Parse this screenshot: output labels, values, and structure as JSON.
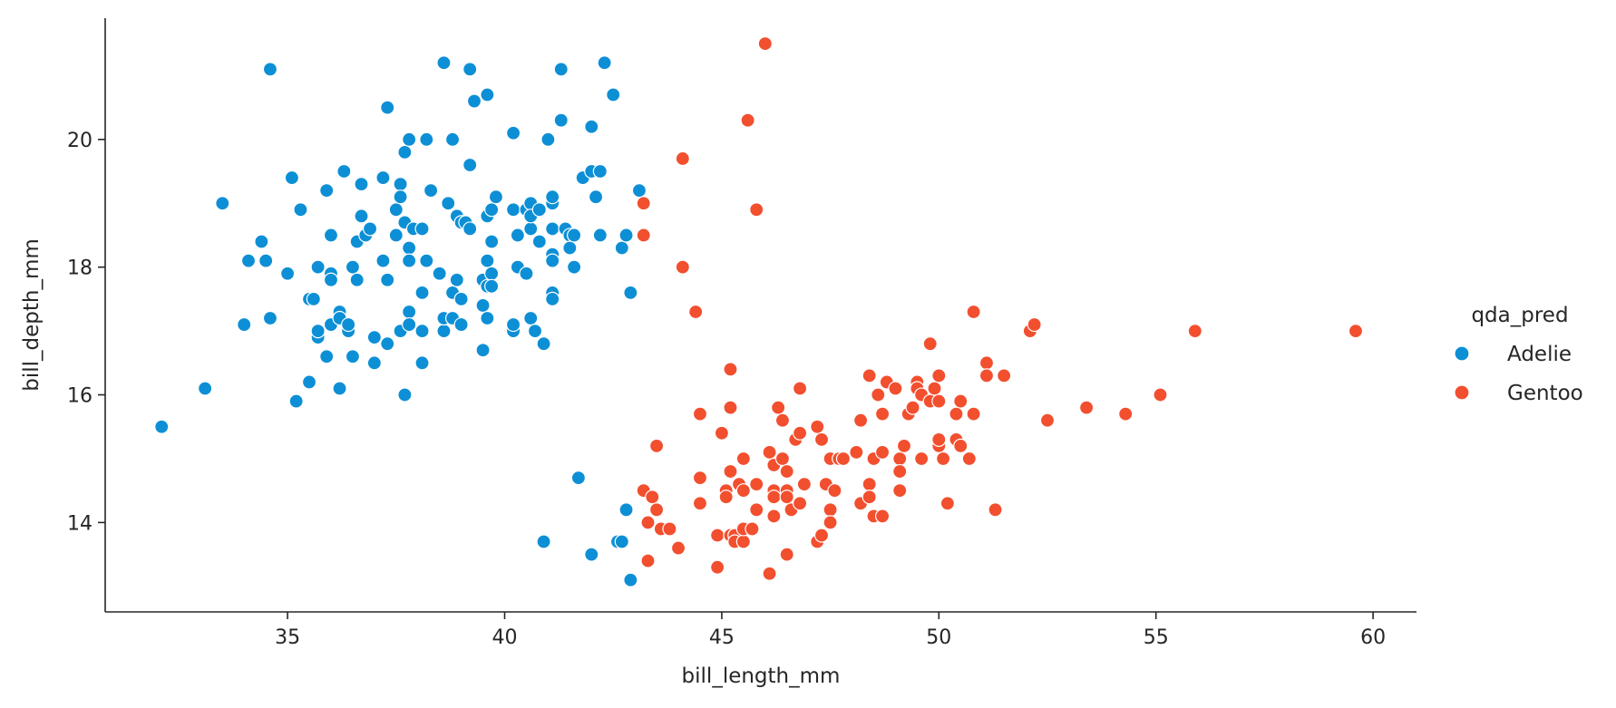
{
  "chart_data": {
    "type": "scatter",
    "title": "",
    "xlabel": "bill_length_mm",
    "ylabel": "bill_depth_mm",
    "xlim": [
      30.8,
      61.0
    ],
    "ylim": [
      12.6,
      21.9
    ],
    "xticks": [
      35,
      40,
      45,
      50,
      55,
      60
    ],
    "yticks": [
      14,
      16,
      18,
      20
    ],
    "grid": false,
    "legend": {
      "title": "qda_pred",
      "position": "right",
      "entries": [
        "Adelie",
        "Gentoo"
      ]
    },
    "colors": {
      "Adelie": "#0d8fd6",
      "Gentoo": "#f24f2f"
    },
    "series": [
      {
        "name": "Adelie",
        "points": [
          [
            32.1,
            15.5
          ],
          [
            33.1,
            16.1
          ],
          [
            33.5,
            19.0
          ],
          [
            34.0,
            17.1
          ],
          [
            34.1,
            18.1
          ],
          [
            34.4,
            18.4
          ],
          [
            34.5,
            18.1
          ],
          [
            34.6,
            21.1
          ],
          [
            34.6,
            17.2
          ],
          [
            35.0,
            17.9
          ],
          [
            35.1,
            19.4
          ],
          [
            35.2,
            15.9
          ],
          [
            35.3,
            18.9
          ],
          [
            35.5,
            16.2
          ],
          [
            35.5,
            17.5
          ],
          [
            35.6,
            17.5
          ],
          [
            35.7,
            16.9
          ],
          [
            35.7,
            17.0
          ],
          [
            35.7,
            18.0
          ],
          [
            35.9,
            19.2
          ],
          [
            35.9,
            16.6
          ],
          [
            36.0,
            18.5
          ],
          [
            36.0,
            17.9
          ],
          [
            36.0,
            17.8
          ],
          [
            36.0,
            17.1
          ],
          [
            36.2,
            16.1
          ],
          [
            36.2,
            17.3
          ],
          [
            36.2,
            17.2
          ],
          [
            36.3,
            19.5
          ],
          [
            36.4,
            17.0
          ],
          [
            36.4,
            17.1
          ],
          [
            36.5,
            16.6
          ],
          [
            36.5,
            18.0
          ],
          [
            36.6,
            17.8
          ],
          [
            36.6,
            18.4
          ],
          [
            36.7,
            18.8
          ],
          [
            36.7,
            19.3
          ],
          [
            36.8,
            18.5
          ],
          [
            36.9,
            18.6
          ],
          [
            37.0,
            16.9
          ],
          [
            37.0,
            16.5
          ],
          [
            37.2,
            18.1
          ],
          [
            37.2,
            19.4
          ],
          [
            37.3,
            20.5
          ],
          [
            37.3,
            17.8
          ],
          [
            37.3,
            16.8
          ],
          [
            37.5,
            18.9
          ],
          [
            37.5,
            18.5
          ],
          [
            37.6,
            19.3
          ],
          [
            37.6,
            19.1
          ],
          [
            37.6,
            17.0
          ],
          [
            37.7,
            19.8
          ],
          [
            37.7,
            18.7
          ],
          [
            37.7,
            16.0
          ],
          [
            37.8,
            20.0
          ],
          [
            37.8,
            18.3
          ],
          [
            37.8,
            17.3
          ],
          [
            37.8,
            18.1
          ],
          [
            37.8,
            17.1
          ],
          [
            37.9,
            18.6
          ],
          [
            38.1,
            18.6
          ],
          [
            38.1,
            17.6
          ],
          [
            38.1,
            17.0
          ],
          [
            38.1,
            16.5
          ],
          [
            38.2,
            18.1
          ],
          [
            38.2,
            20.0
          ],
          [
            38.3,
            19.2
          ],
          [
            38.6,
            21.2
          ],
          [
            38.6,
            17.0
          ],
          [
            38.6,
            17.2
          ],
          [
            38.5,
            17.9
          ],
          [
            38.7,
            19.0
          ],
          [
            38.8,
            17.2
          ],
          [
            38.8,
            20.0
          ],
          [
            38.8,
            17.6
          ],
          [
            38.9,
            18.8
          ],
          [
            38.9,
            17.8
          ],
          [
            39.0,
            18.7
          ],
          [
            39.0,
            17.5
          ],
          [
            39.0,
            17.1
          ],
          [
            39.1,
            18.7
          ],
          [
            39.2,
            21.1
          ],
          [
            39.2,
            19.6
          ],
          [
            39.2,
            18.6
          ],
          [
            39.3,
            20.6
          ],
          [
            39.5,
            17.8
          ],
          [
            39.5,
            16.7
          ],
          [
            39.5,
            17.4
          ],
          [
            39.6,
            18.8
          ],
          [
            39.6,
            17.7
          ],
          [
            39.6,
            18.1
          ],
          [
            39.6,
            17.2
          ],
          [
            39.6,
            20.7
          ],
          [
            39.7,
            18.4
          ],
          [
            39.7,
            17.9
          ],
          [
            39.7,
            18.9
          ],
          [
            39.7,
            17.7
          ],
          [
            39.8,
            19.1
          ],
          [
            40.2,
            20.1
          ],
          [
            40.2,
            18.9
          ],
          [
            40.2,
            17.0
          ],
          [
            40.2,
            17.1
          ],
          [
            40.3,
            18.0
          ],
          [
            40.3,
            18.5
          ],
          [
            40.5,
            18.9
          ],
          [
            40.5,
            17.9
          ],
          [
            40.6,
            19.0
          ],
          [
            40.6,
            18.6
          ],
          [
            40.6,
            18.8
          ],
          [
            40.6,
            17.2
          ],
          [
            40.7,
            17.0
          ],
          [
            40.8,
            18.4
          ],
          [
            40.8,
            18.9
          ],
          [
            40.9,
            16.8
          ],
          [
            41.0,
            20.0
          ],
          [
            41.1,
            19.0
          ],
          [
            41.1,
            18.6
          ],
          [
            41.1,
            17.6
          ],
          [
            41.1,
            18.2
          ],
          [
            41.1,
            19.1
          ],
          [
            41.1,
            18.1
          ],
          [
            41.1,
            17.5
          ],
          [
            41.3,
            21.1
          ],
          [
            41.3,
            20.3
          ],
          [
            41.4,
            18.6
          ],
          [
            41.5,
            18.5
          ],
          [
            41.5,
            18.3
          ],
          [
            41.6,
            18.0
          ],
          [
            41.6,
            18.5
          ],
          [
            41.8,
            19.4
          ],
          [
            42.0,
            20.2
          ],
          [
            42.0,
            19.5
          ],
          [
            42.1,
            19.1
          ],
          [
            42.2,
            18.5
          ],
          [
            42.2,
            19.5
          ],
          [
            42.3,
            21.2
          ],
          [
            42.5,
            20.7
          ],
          [
            42.7,
            18.3
          ],
          [
            42.8,
            18.5
          ],
          [
            42.9,
            17.6
          ],
          [
            43.1,
            19.2
          ],
          [
            41.7,
            14.7
          ],
          [
            40.9,
            13.7
          ],
          [
            42.0,
            13.5
          ],
          [
            42.6,
            13.7
          ],
          [
            42.7,
            13.7
          ],
          [
            42.8,
            14.2
          ],
          [
            42.9,
            13.1
          ]
        ]
      },
      {
        "name": "Gentoo",
        "points": [
          [
            43.2,
            19.0
          ],
          [
            43.2,
            18.5
          ],
          [
            43.2,
            14.5
          ],
          [
            43.3,
            14.0
          ],
          [
            43.3,
            13.4
          ],
          [
            43.4,
            14.4
          ],
          [
            43.5,
            14.2
          ],
          [
            43.5,
            15.2
          ],
          [
            43.6,
            13.9
          ],
          [
            43.8,
            13.9
          ],
          [
            44.0,
            13.6
          ],
          [
            44.1,
            19.7
          ],
          [
            44.1,
            18.0
          ],
          [
            44.4,
            17.3
          ],
          [
            44.5,
            15.7
          ],
          [
            44.5,
            14.7
          ],
          [
            44.5,
            14.3
          ],
          [
            44.9,
            13.3
          ],
          [
            44.9,
            13.8
          ],
          [
            45.0,
            15.4
          ],
          [
            45.1,
            14.5
          ],
          [
            45.1,
            14.4
          ],
          [
            45.2,
            16.4
          ],
          [
            45.2,
            15.8
          ],
          [
            45.2,
            14.8
          ],
          [
            45.2,
            13.8
          ],
          [
            45.3,
            13.8
          ],
          [
            45.3,
            13.7
          ],
          [
            45.4,
            14.6
          ],
          [
            45.5,
            15.0
          ],
          [
            45.5,
            14.5
          ],
          [
            45.5,
            13.7
          ],
          [
            45.5,
            13.9
          ],
          [
            45.6,
            20.3
          ],
          [
            45.7,
            13.9
          ],
          [
            45.8,
            18.9
          ],
          [
            45.8,
            14.6
          ],
          [
            45.8,
            14.2
          ],
          [
            46.0,
            21.5
          ],
          [
            46.1,
            15.1
          ],
          [
            46.1,
            13.2
          ],
          [
            46.2,
            14.5
          ],
          [
            46.2,
            14.9
          ],
          [
            46.2,
            14.4
          ],
          [
            46.2,
            14.1
          ],
          [
            46.3,
            15.8
          ],
          [
            46.4,
            15.6
          ],
          [
            46.4,
            15.0
          ],
          [
            46.5,
            14.8
          ],
          [
            46.5,
            14.5
          ],
          [
            46.5,
            14.4
          ],
          [
            46.5,
            13.5
          ],
          [
            46.6,
            14.2
          ],
          [
            46.7,
            15.3
          ],
          [
            46.8,
            16.1
          ],
          [
            46.8,
            15.4
          ],
          [
            46.8,
            14.3
          ],
          [
            46.9,
            14.6
          ],
          [
            47.2,
            15.5
          ],
          [
            47.2,
            13.7
          ],
          [
            47.3,
            15.3
          ],
          [
            47.3,
            13.8
          ],
          [
            47.4,
            14.6
          ],
          [
            47.5,
            15.0
          ],
          [
            47.5,
            14.2
          ],
          [
            47.5,
            14.0
          ],
          [
            47.6,
            14.5
          ],
          [
            47.7,
            15.0
          ],
          [
            47.8,
            15.0
          ],
          [
            48.1,
            15.1
          ],
          [
            48.2,
            15.6
          ],
          [
            48.2,
            14.3
          ],
          [
            48.4,
            16.3
          ],
          [
            48.4,
            14.6
          ],
          [
            48.4,
            14.4
          ],
          [
            48.5,
            15.0
          ],
          [
            48.5,
            14.1
          ],
          [
            48.6,
            16.0
          ],
          [
            48.7,
            15.7
          ],
          [
            48.7,
            15.1
          ],
          [
            48.7,
            14.1
          ],
          [
            48.8,
            16.2
          ],
          [
            49.0,
            16.1
          ],
          [
            49.1,
            15.0
          ],
          [
            49.1,
            14.8
          ],
          [
            49.1,
            14.5
          ],
          [
            49.2,
            15.2
          ],
          [
            49.3,
            15.7
          ],
          [
            49.4,
            15.8
          ],
          [
            49.5,
            16.2
          ],
          [
            49.5,
            16.1
          ],
          [
            49.6,
            16.0
          ],
          [
            49.6,
            15.0
          ],
          [
            49.8,
            16.8
          ],
          [
            49.8,
            15.9
          ],
          [
            49.9,
            16.1
          ],
          [
            50.0,
            16.3
          ],
          [
            50.0,
            15.9
          ],
          [
            50.0,
            15.2
          ],
          [
            50.0,
            15.3
          ],
          [
            50.1,
            15.0
          ],
          [
            50.2,
            14.3
          ],
          [
            50.4,
            15.7
          ],
          [
            50.4,
            15.3
          ],
          [
            50.5,
            15.9
          ],
          [
            50.5,
            15.2
          ],
          [
            50.7,
            15.0
          ],
          [
            50.8,
            17.3
          ],
          [
            50.8,
            15.7
          ],
          [
            51.1,
            16.5
          ],
          [
            51.1,
            16.3
          ],
          [
            51.3,
            14.2
          ],
          [
            51.5,
            16.3
          ],
          [
            52.1,
            17.0
          ],
          [
            52.2,
            17.1
          ],
          [
            52.5,
            15.6
          ],
          [
            53.4,
            15.8
          ],
          [
            54.3,
            15.7
          ],
          [
            55.1,
            16.0
          ],
          [
            55.9,
            17.0
          ],
          [
            59.6,
            17.0
          ]
        ]
      }
    ]
  }
}
